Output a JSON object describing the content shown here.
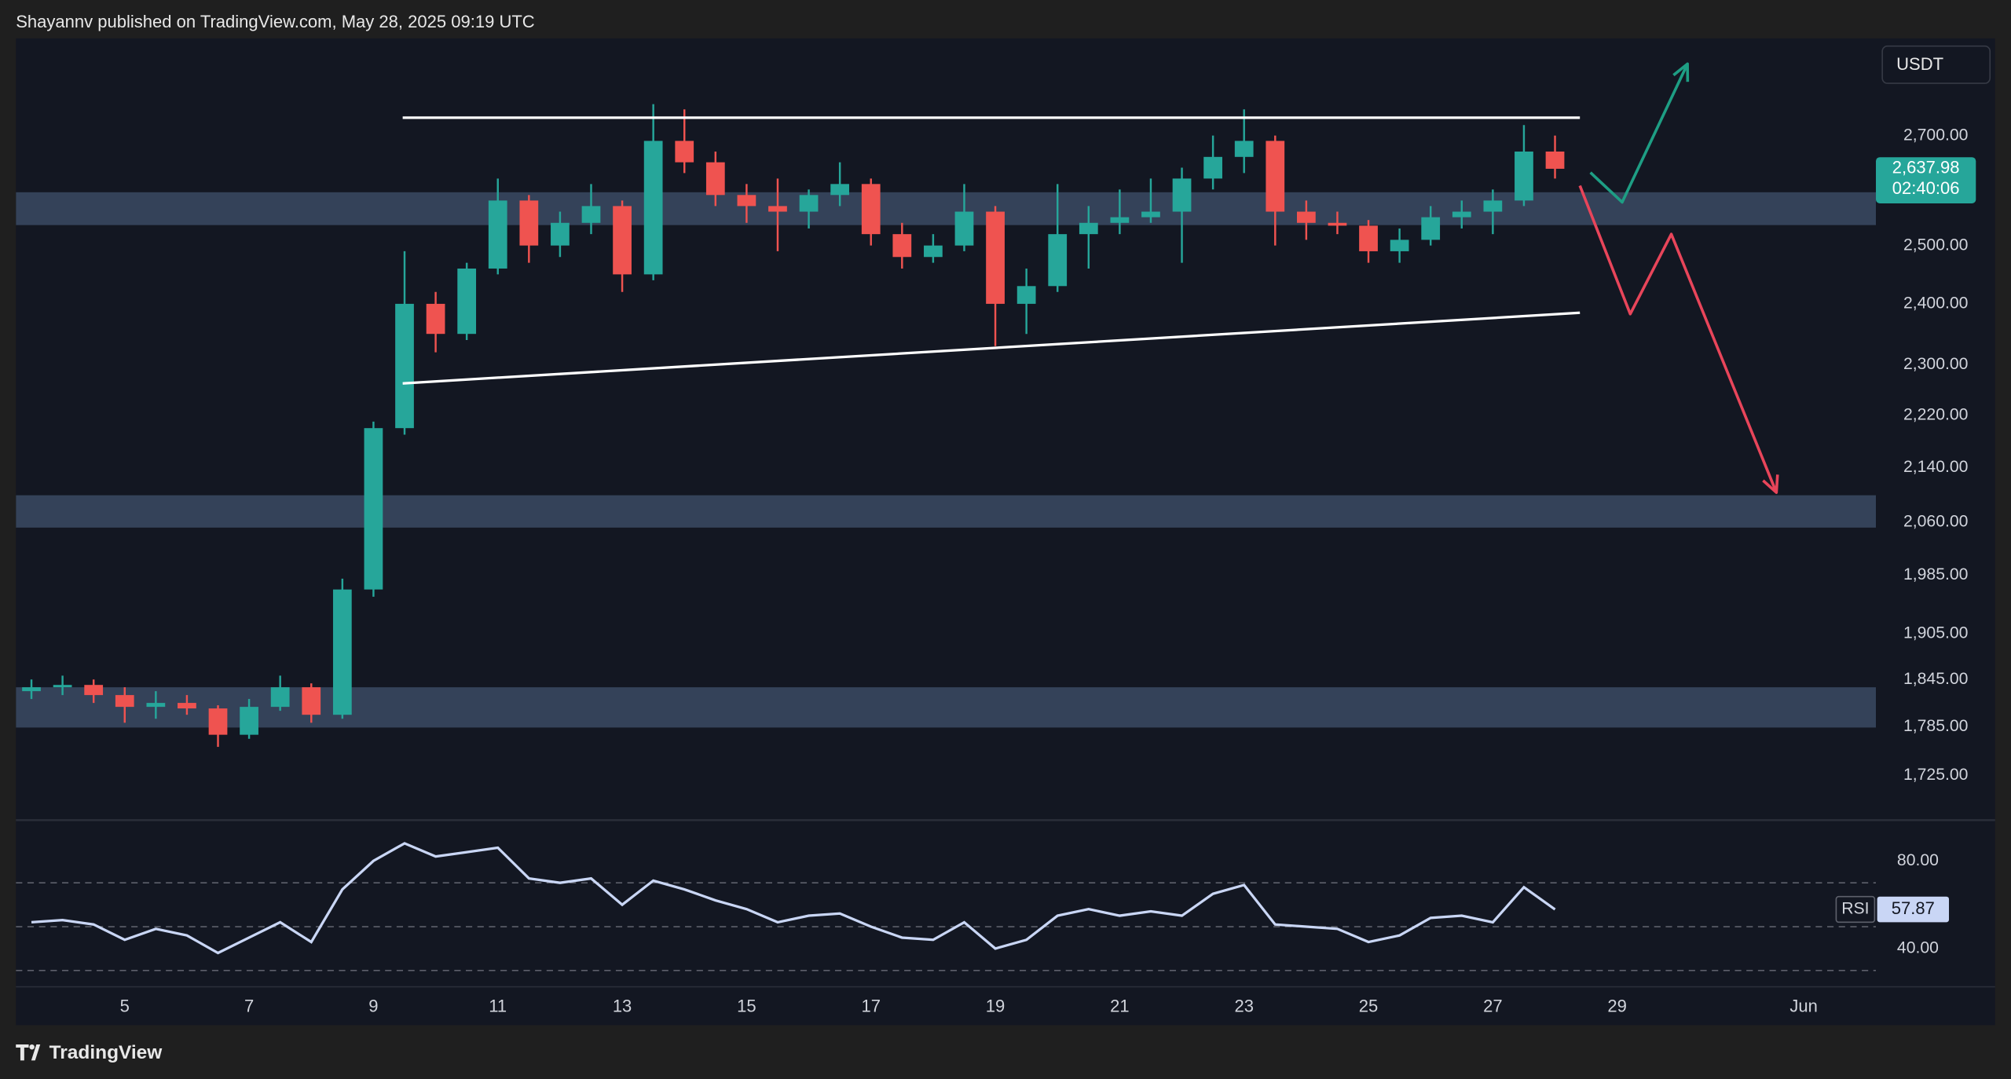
{
  "header": "Shayannv published on TradingView.com, May 28, 2025 09:19 UTC",
  "footer": "TradingView",
  "chart_data": [
    {
      "type": "candlestick",
      "currency": "USDT",
      "log": true,
      "up_color": "#26a69a",
      "down_color": "#ef5350",
      "x": [
        3.5,
        4,
        4.5,
        5,
        5.5,
        6,
        6.5,
        7,
        7.5,
        8,
        8.5,
        9,
        9.5,
        10,
        10.5,
        11,
        11.5,
        12,
        12.5,
        13,
        13.5,
        14,
        14.5,
        15,
        15.5,
        16,
        16.5,
        17,
        17.5,
        18,
        18.5,
        19,
        19.5,
        20,
        20.5,
        21,
        21.5,
        22,
        22.5,
        23,
        23.5,
        24,
        24.5,
        25,
        25.5,
        26,
        26.5,
        27,
        27.5,
        28
      ],
      "open": [
        1830,
        1835,
        1838,
        1825,
        1810,
        1815,
        1808,
        1775,
        1810,
        1835,
        1800,
        1965,
        2200,
        2400,
        2350,
        2460,
        2580,
        2500,
        2540,
        2570,
        2450,
        2690,
        2650,
        2590,
        2570,
        2560,
        2590,
        2610,
        2520,
        2480,
        2500,
        2560,
        2400,
        2430,
        2520,
        2540,
        2550,
        2560,
        2620,
        2660,
        2690,
        2560,
        2540,
        2535,
        2490,
        2510,
        2550,
        2560,
        2580,
        2670
      ],
      "high": [
        1845,
        1850,
        1845,
        1835,
        1830,
        1825,
        1812,
        1820,
        1850,
        1840,
        1980,
        2210,
        2490,
        2420,
        2470,
        2620,
        2590,
        2560,
        2610,
        2580,
        2760,
        2750,
        2670,
        2610,
        2620,
        2600,
        2650,
        2620,
        2540,
        2520,
        2610,
        2570,
        2460,
        2610,
        2570,
        2600,
        2620,
        2640,
        2700,
        2750,
        2700,
        2580,
        2560,
        2545,
        2530,
        2570,
        2580,
        2600,
        2720,
        2700
      ],
      "low": [
        1820,
        1825,
        1815,
        1790,
        1795,
        1800,
        1760,
        1770,
        1805,
        1790,
        1795,
        1955,
        2190,
        2320,
        2340,
        2450,
        2470,
        2480,
        2520,
        2420,
        2440,
        2630,
        2570,
        2540,
        2490,
        2530,
        2570,
        2500,
        2460,
        2470,
        2490,
        2330,
        2350,
        2420,
        2460,
        2520,
        2540,
        2470,
        2600,
        2630,
        2500,
        2510,
        2520,
        2470,
        2470,
        2500,
        2530,
        2520,
        2570,
        2620
      ],
      "close": [
        1835,
        1838,
        1825,
        1810,
        1815,
        1808,
        1775,
        1810,
        1835,
        1800,
        1965,
        2200,
        2400,
        2350,
        2460,
        2580,
        2500,
        2540,
        2570,
        2450,
        2690,
        2650,
        2590,
        2570,
        2560,
        2590,
        2610,
        2520,
        2480,
        2500,
        2560,
        2400,
        2430,
        2520,
        2540,
        2550,
        2560,
        2620,
        2660,
        2690,
        2560,
        2540,
        2535,
        2490,
        2510,
        2550,
        2560,
        2580,
        2670,
        2637.98
      ],
      "last_price": {
        "value": 2637.98,
        "label": "2,637.98"
      },
      "countdown": "02:40:06",
      "xlim": [
        3.25,
        33.16
      ],
      "xticks": [
        5,
        7,
        9,
        11,
        13,
        15,
        17,
        19,
        21,
        23,
        25,
        27,
        29,
        {
          "value": 32,
          "label": "Jun"
        }
      ],
      "ylim": [
        1675,
        2890
      ],
      "yticks": [
        {
          "value": 2700,
          "label": "2,700.00"
        },
        {
          "value": 2500,
          "label": "2,500.00"
        },
        {
          "value": 2400,
          "label": "2,400.00"
        },
        {
          "value": 2300,
          "label": "2,300.00"
        },
        {
          "value": 2220,
          "label": "2,220.00"
        },
        {
          "value": 2140,
          "label": "2,140.00"
        },
        {
          "value": 2060,
          "label": "2,060.00"
        },
        {
          "value": 1985,
          "label": "1,985.00"
        },
        {
          "value": 1905,
          "label": "1,905.00"
        },
        {
          "value": 1845,
          "label": "1,845.00"
        },
        {
          "value": 1785,
          "label": "1,785.00"
        },
        {
          "value": 1725,
          "label": "1,725.00"
        }
      ],
      "grid": false,
      "zones": [
        [
          2536,
          2595
        ],
        [
          2052,
          2099
        ],
        [
          1784,
          1835
        ]
      ],
      "zone_color": "#3b4a63",
      "lines": [
        {
          "color": "#ffffff",
          "x": [
            9.47,
            28.4
          ],
          "y": [
            2734,
            2734
          ]
        },
        {
          "color": "#ffffff",
          "x": [
            9.47,
            28.4
          ],
          "y": [
            2270,
            2385
          ]
        }
      ],
      "arrows": [
        {
          "color": "#1e9e84",
          "x": [
            28.57,
            29.08,
            30.13
          ],
          "y": [
            2631,
            2577,
            2839
          ]
        },
        {
          "color": "#e8455a",
          "x": [
            28.4,
            29.21,
            29.87,
            31.56
          ],
          "y": [
            2607,
            2383,
            2520,
            2103
          ]
        }
      ]
    },
    {
      "type": "line",
      "x": [
        3.5,
        4,
        4.5,
        5,
        5.5,
        6,
        6.5,
        7,
        7.5,
        8,
        8.5,
        9,
        9.5,
        10,
        10.5,
        11,
        11.5,
        12,
        12.5,
        13,
        13.5,
        14,
        14.5,
        15,
        15.5,
        16,
        16.5,
        17,
        17.5,
        18,
        18.5,
        19,
        19.5,
        20,
        20.5,
        21,
        21.5,
        22,
        22.5,
        23,
        23.5,
        24,
        24.5,
        25,
        25.5,
        26,
        26.5,
        27,
        27.5,
        28
      ],
      "series": [
        {
          "name": "RSI",
          "color": "#c9d6f5",
          "values": [
            52,
            53,
            51,
            44,
            49,
            46,
            38,
            45,
            52,
            43,
            67,
            80,
            88,
            82,
            84,
            86,
            72,
            70,
            72,
            60,
            71,
            67,
            62,
            58,
            52,
            55,
            56,
            50,
            45,
            44,
            52,
            40,
            44,
            55,
            58,
            55,
            57,
            55,
            65,
            69,
            51,
            50,
            49,
            43,
            46,
            54,
            55,
            52,
            68,
            57.87
          ]
        }
      ],
      "xlim": [
        3.25,
        33.16
      ],
      "ylim": [
        22.6,
        98
      ],
      "yticks": [
        {
          "value": 80,
          "label": "80.00"
        },
        {
          "value": 40,
          "label": "40.00"
        }
      ],
      "hlines": [
        70,
        50,
        30
      ]
    }
  ]
}
